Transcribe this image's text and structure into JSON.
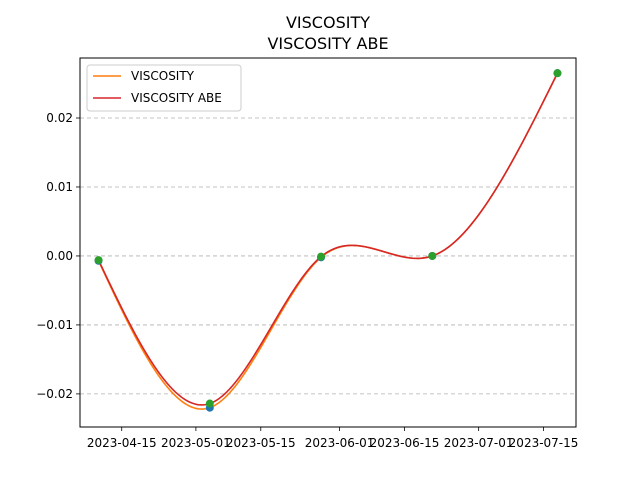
{
  "chart_data": {
    "type": "line",
    "title": "VISCOSITY",
    "subtitle": "VISCOSITY ABE",
    "xlabel": "",
    "ylabel": "",
    "x_axis_type": "date",
    "xlim": [
      "2023-04-06",
      "2023-07-22"
    ],
    "ylim": [
      -0.0248,
      0.0287
    ],
    "x_ticks": [
      "2023-04-15",
      "2023-05-01",
      "2023-05-15",
      "2023-06-01",
      "2023-06-15",
      "2023-07-01",
      "2023-07-15"
    ],
    "y_ticks": [
      -0.02,
      -0.01,
      0.0,
      0.01,
      0.02
    ],
    "y_tick_labels": [
      "−0.02",
      "−0.01",
      "0.00",
      "0.01",
      "0.02"
    ],
    "grid": "y-dashed",
    "legend_position": "top-left",
    "series": [
      {
        "name": "VISCOSITY",
        "color": "#ff7f0e",
        "x": [
          "2023-04-10",
          "2023-05-04",
          "2023-05-28",
          "2023-06-21",
          "2023-07-18"
        ],
        "y": [
          -0.0007,
          -0.022,
          -0.0002,
          0.0,
          0.0265
        ],
        "markers": "#1f77b4"
      },
      {
        "name": "VISCOSITY ABE",
        "color": "#d62728",
        "x": [
          "2023-04-10",
          "2023-05-04",
          "2023-05-28",
          "2023-06-21",
          "2023-07-18"
        ],
        "y": [
          -0.0006,
          -0.0214,
          -0.0001,
          0.0,
          0.0265
        ],
        "markers": "#2ca02c"
      }
    ]
  }
}
